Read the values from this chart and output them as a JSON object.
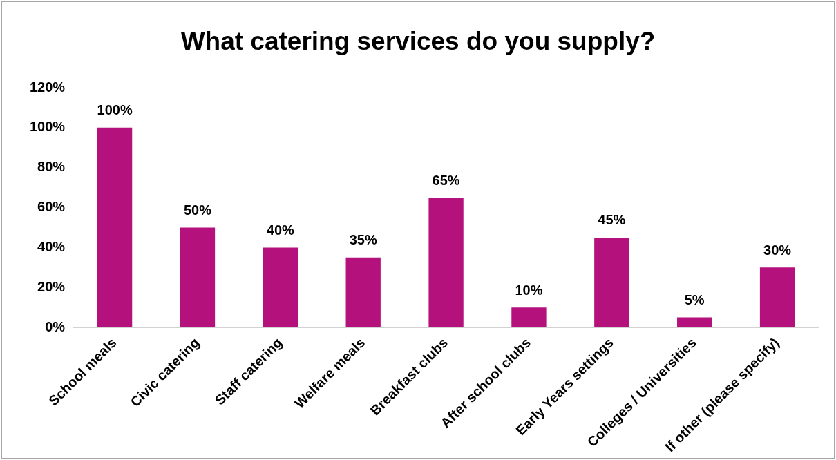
{
  "chart_data": {
    "type": "bar",
    "title": "What catering services do you supply?",
    "categories": [
      "School meals",
      "Civic catering",
      "Staff catering",
      "Welfare meals",
      "Breakfast clubs",
      "After school clubs",
      "Early Years settings",
      "Colleges / Universities",
      "If other (please specify)"
    ],
    "values": [
      100,
      50,
      40,
      35,
      65,
      10,
      45,
      5,
      30
    ],
    "value_labels": [
      "100%",
      "50%",
      "40%",
      "35%",
      "65%",
      "10%",
      "45%",
      "5%",
      "30%"
    ],
    "color": "#b5117d",
    "ylim": [
      0,
      120
    ],
    "yticks": [
      {
        "value": 0,
        "label": "0%"
      },
      {
        "value": 20,
        "label": "20%"
      },
      {
        "value": 40,
        "label": "40%"
      },
      {
        "value": 60,
        "label": "60%"
      },
      {
        "value": 80,
        "label": "80%"
      },
      {
        "value": 100,
        "label": "100%"
      },
      {
        "value": 120,
        "label": "120%"
      }
    ],
    "grid": false,
    "legend": false
  }
}
